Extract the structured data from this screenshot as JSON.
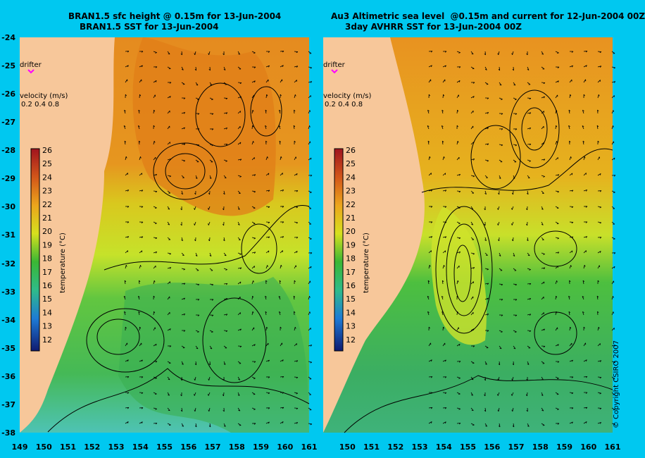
{
  "panels": [
    {
      "id": "left",
      "title_line1": "BRAN1.5 sfc height @ 0.15m for 13-Jun-2004",
      "title_line2": "BRAN1.5 SST for 13-Jun-2004"
    },
    {
      "id": "right",
      "title_line1": "Au3 Altimetric sea level  @0.15m and current for 12-Jun-2004 00Z",
      "title_line2": "3day AVHRR SST for 13-Jun-2004 00Z"
    }
  ],
  "legend": {
    "drifter_label": "drifter",
    "velocity_label": "velocity (m/s)",
    "velocity_scale": "0.2 0.4 0.8",
    "colorbar_label": "temperature (°C)",
    "colorbar_ticks": [
      "26",
      "25",
      "24",
      "23",
      "22",
      "21",
      "20",
      "19",
      "18",
      "17",
      "16",
      "15",
      "14",
      "13",
      "12"
    ]
  },
  "axes": {
    "lat_ticks": [
      "-24",
      "-25",
      "-26",
      "-27",
      "-28",
      "-29",
      "-30",
      "-31",
      "-32",
      "-33",
      "-34",
      "-35",
      "-36",
      "-37",
      "-38"
    ],
    "lon_ticks_left": [
      "149",
      "150",
      "151",
      "152",
      "153",
      "154",
      "155",
      "156",
      "157",
      "158",
      "159",
      "160",
      "161"
    ],
    "lon_ticks_right": [
      "150",
      "151",
      "152",
      "153",
      "154",
      "155",
      "156",
      "157",
      "158",
      "159",
      "160",
      "161"
    ],
    "lon_range": [
      149,
      161
    ],
    "lat_range": [
      -38,
      -24
    ]
  },
  "copyright": "© Copyright CSIRO 2007",
  "colors": {
    "background": "#00c8f0",
    "land": "#f7c79a",
    "warm": "#e08a1e",
    "cool": "#3ab34a"
  }
}
